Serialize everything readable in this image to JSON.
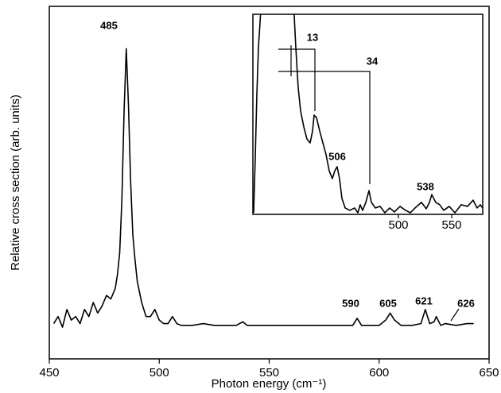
{
  "chart_data": [
    {
      "type": "line",
      "x_label": "Photon energy (cm⁻¹)",
      "y_label": "Relative cross section (arb. units)",
      "xlim": [
        450,
        650
      ],
      "xticks": [
        450,
        500,
        550,
        600,
        650
      ],
      "ylim": [
        0,
        100
      ],
      "color": "#000000",
      "x": [
        452,
        454,
        456,
        458,
        460,
        462,
        464,
        466,
        468,
        470,
        472,
        474,
        476,
        478,
        480,
        481,
        482,
        483,
        484,
        485,
        486,
        487,
        488,
        489,
        490,
        492,
        494,
        496,
        498,
        500,
        502,
        504,
        506,
        508,
        510,
        515,
        520,
        525,
        530,
        535,
        538,
        540,
        545,
        550,
        555,
        560,
        565,
        570,
        575,
        580,
        585,
        588,
        590,
        592,
        595,
        600,
        603,
        605,
        607,
        610,
        615,
        619,
        621,
        623,
        625,
        626,
        628,
        630,
        635,
        640,
        643
      ],
      "values": [
        10,
        12,
        9,
        14,
        11,
        12,
        10,
        14,
        12,
        16,
        13,
        15,
        18,
        17,
        20,
        24,
        30,
        45,
        70,
        88,
        72,
        50,
        35,
        28,
        22,
        16,
        12,
        12,
        14,
        11,
        10,
        10,
        12,
        10,
        9.5,
        9.5,
        10,
        9.5,
        9.5,
        9.5,
        10.5,
        9.5,
        9.5,
        9.5,
        9.5,
        9.5,
        9.5,
        9.5,
        9.5,
        9.5,
        9.5,
        9.5,
        11.5,
        9.5,
        9.5,
        9.5,
        11,
        13,
        11,
        9.5,
        9.5,
        10,
        14,
        10,
        10.5,
        12,
        9.5,
        10,
        9.5,
        10,
        10
      ],
      "annotations": [
        "485",
        "590",
        "605",
        "621",
        "626"
      ]
    },
    {
      "type": "line",
      "xlim": [
        363.4,
        579.1
      ],
      "xticks": [
        500,
        550
      ],
      "ylim": [
        0,
        100
      ],
      "color": "#000000",
      "x": [
        364.1,
        365.6,
        367.1,
        368.6,
        372.4,
        398.5,
        402.2,
        403.7,
        405.9,
        408.2,
        411.2,
        414.1,
        417.1,
        419.4,
        420.9,
        423.1,
        426.1,
        429.1,
        432.1,
        435.0,
        438.0,
        440.3,
        442.5,
        444.7,
        447.0,
        450.0,
        454.4,
        458.9,
        461.9,
        464.1,
        466.4,
        469.4,
        472.4,
        474.6,
        478.3,
        482.8,
        487.3,
        491.8,
        496.2,
        501.5,
        506.7,
        511.2,
        515.6,
        521.6,
        526.1,
        529.1,
        531.3,
        535.0,
        538.8,
        542.5,
        547.7,
        553.0,
        558.9,
        564.9,
        570.1,
        573.8,
        576.8,
        579.0
      ],
      "values": [
        0.8,
        27.8,
        59.5,
        83.3,
        115,
        115,
        99.2,
        83.3,
        63.5,
        51.6,
        43.7,
        37.7,
        35.7,
        41.7,
        49.6,
        48.4,
        41.7,
        35.7,
        29.8,
        21.8,
        17.9,
        21.8,
        23.8,
        17.9,
        7.9,
        3.2,
        2.0,
        3.2,
        0.8,
        4.8,
        2.0,
        6.0,
        11.9,
        6.0,
        3.2,
        4.0,
        0.8,
        3.2,
        1.2,
        4.0,
        2.0,
        0.8,
        3.2,
        6.0,
        2.8,
        6.0,
        9.9,
        6.0,
        4.8,
        2.0,
        4.0,
        0.8,
        4.8,
        4.0,
        7.1,
        3.2,
        4.8,
        3.2
      ],
      "annotations": [
        "13",
        "34",
        "506",
        "538"
      ]
    }
  ]
}
